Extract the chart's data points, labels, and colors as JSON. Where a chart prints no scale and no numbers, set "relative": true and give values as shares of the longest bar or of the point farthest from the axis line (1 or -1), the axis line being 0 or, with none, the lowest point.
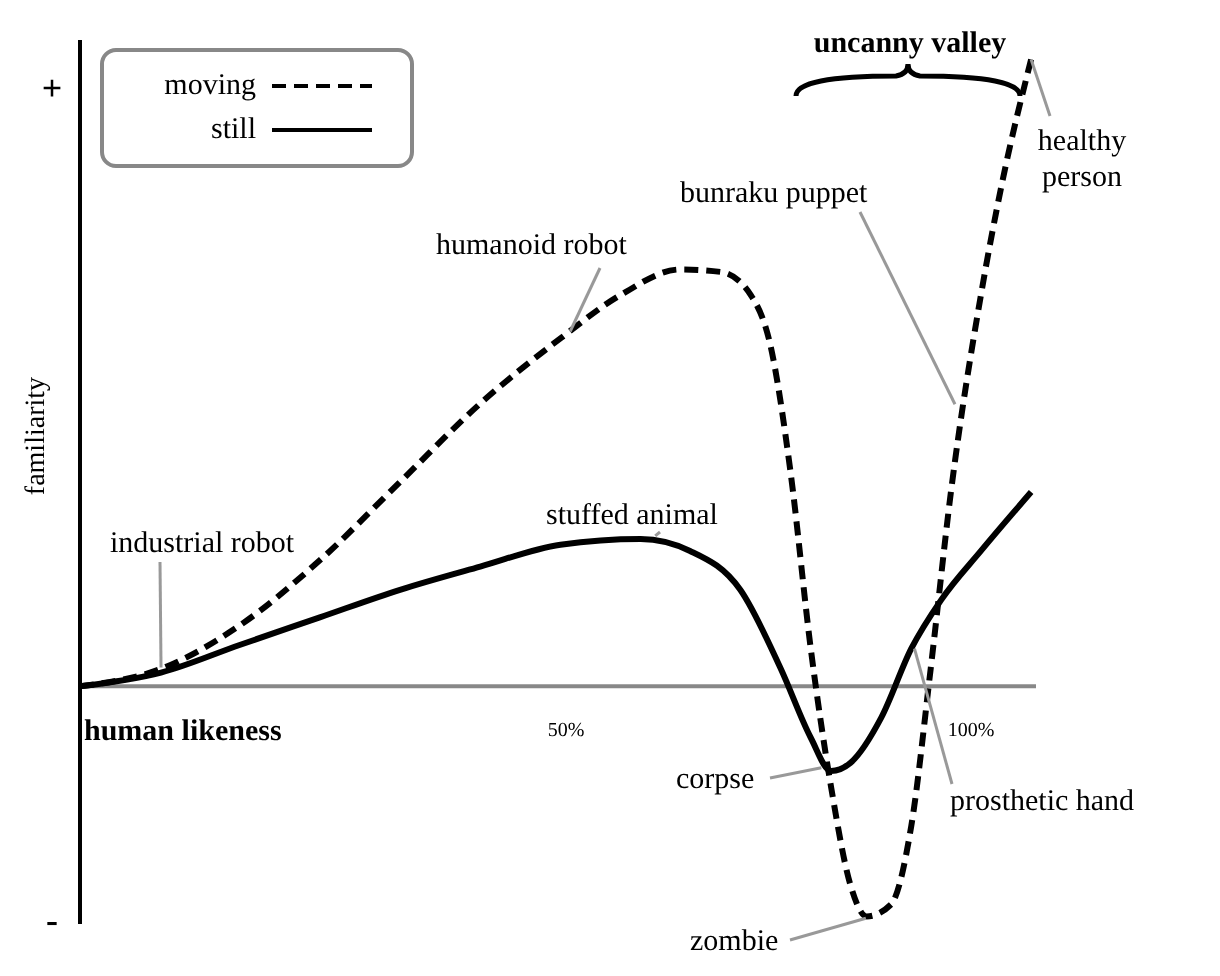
{
  "chart_data": {
    "type": "line",
    "relative": true,
    "xlabel": "human likeness",
    "ylabel": "familiarity",
    "xlim": [
      -10,
      108
    ],
    "xticks": [
      {
        "value": 50,
        "label": "50%"
      },
      {
        "value": 100,
        "label": "100%"
      }
    ],
    "legend": "top left",
    "marker": "none",
    "x": [
      -10,
      0,
      9.7,
      19.6,
      29.5,
      39.4,
      49.3,
      56.7,
      64.1,
      69.1,
      72.8,
      75.2,
      77.7,
      80.2,
      82.7,
      85.1,
      87.1,
      90.1,
      92.6,
      95,
      97.5,
      101.2,
      103.7,
      107.4
    ],
    "series": [
      {
        "name": "moving",
        "color": "#000000",
        "line_style": "dashed",
        "values": [
          0,
          0.028,
          0.097,
          0.201,
          0.326,
          0.451,
          0.555,
          0.624,
          0.665,
          0.661,
          0.624,
          0.545,
          0.342,
          0.06,
          -0.16,
          -0.317,
          -0.367,
          -0.348,
          -0.223,
          0.028,
          0.31,
          0.624,
          0.796,
          1
        ]
      },
      {
        "name": "still",
        "color": "#000000",
        "line_style": "solid",
        "x": [
          -10,
          0,
          9.7,
          19.6,
          29.5,
          39.4,
          49.3,
          59.2,
          65.3,
          71.5,
          76.5,
          80.2,
          82.7,
          85.1,
          88.9,
          92.6,
          96.3,
          101.2,
          107.4
        ],
        "values": [
          0,
          0.022,
          0.066,
          0.11,
          0.154,
          0.191,
          0.226,
          0.235,
          0.216,
          0.154,
          0.028,
          -0.082,
          -0.135,
          -0.122,
          -0.05,
          0.06,
          0.138,
          0.216,
          0.31
        ]
      }
    ],
    "annotations": [
      "uncanny valley",
      "+",
      "-",
      {
        "text": "industrial robot",
        "x": 0,
        "y": 0.03
      },
      {
        "text": "humanoid robot",
        "x": 50.5,
        "y": 0.566
      },
      {
        "text": "stuffed animal",
        "x": 61,
        "y": 0.24
      },
      {
        "text": "bunraku puppet",
        "x": 98,
        "y": 0.45
      },
      {
        "text": "healthy person",
        "x": 107.4,
        "y": 1
      },
      {
        "text": "corpse",
        "x": 81.5,
        "y": -0.13
      },
      {
        "text": "zombie",
        "x": 87,
        "y": -0.37
      },
      {
        "text": "prosthetic hand",
        "x": 93,
        "y": 0.06
      }
    ]
  }
}
